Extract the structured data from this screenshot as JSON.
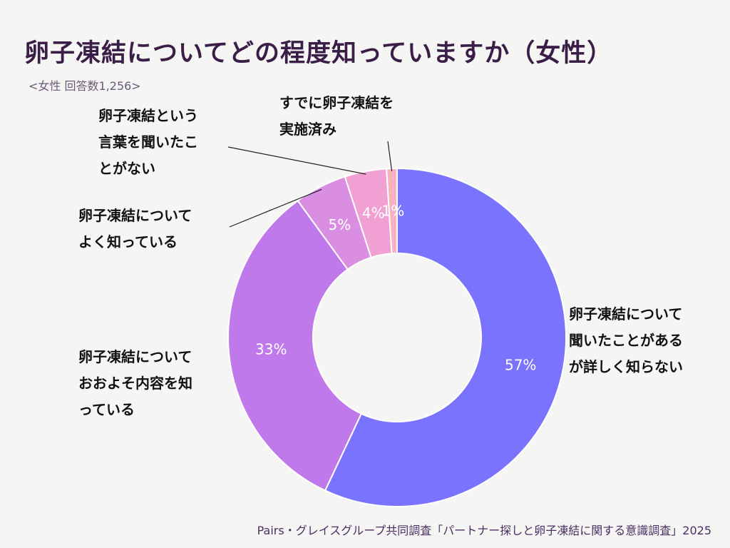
{
  "title": "卵子凍結についてどの程度知っていますか（女性）",
  "subtitle": "<女性 回答数1,256>",
  "source": "Pairs・グレイスグループ共同調査「パートナー探しと卵子凍結に関する意識調査」2025",
  "chart_data": {
    "type": "pie",
    "subtype": "donut",
    "slices": [
      {
        "label": "卵子凍結について\n聞いたことがある\nが詳しく知らない",
        "value": 57,
        "display": "57%",
        "color": "#7a73fd"
      },
      {
        "label": "卵子凍結について\nおおよそ内容を知\nっている",
        "value": 33,
        "display": "33%",
        "color": "#bf79ea"
      },
      {
        "label": "卵子凍結について\nよく知っている",
        "value": 5,
        "display": "5%",
        "color": "#d98ee2"
      },
      {
        "label": "卵子凍結という\n言葉を聞いたこ\nとがない",
        "value": 4,
        "display": "4%",
        "color": "#f0a0d2"
      },
      {
        "label": "すでに卵子凍結を\n実施済み",
        "value": 1,
        "display": "1%",
        "color": "#f7b1c1"
      }
    ]
  }
}
